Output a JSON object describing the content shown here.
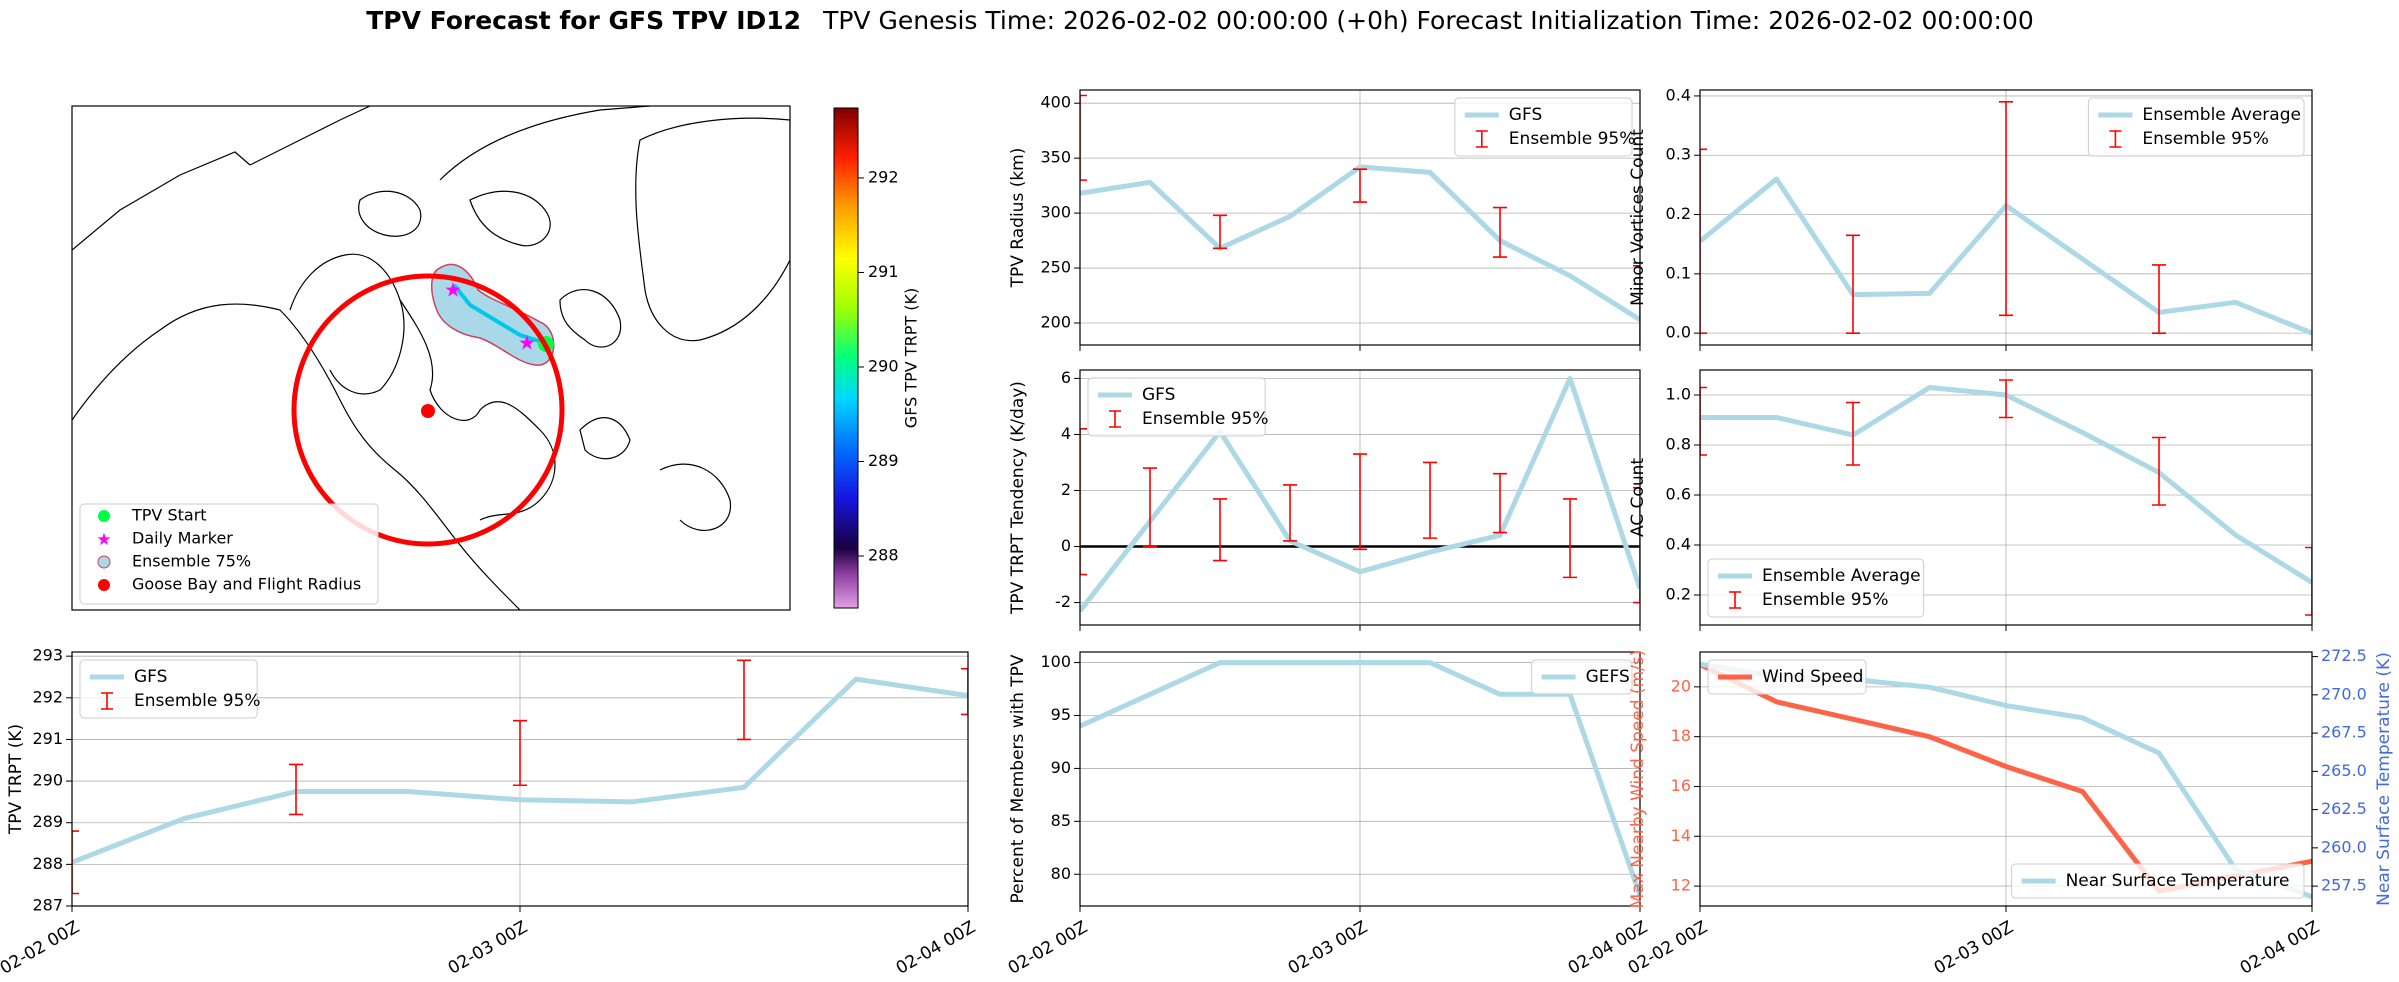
{
  "title": "TPV Forecast for GFS TPV ID12",
  "subtitle": "TPV Genesis Time: 2026-02-02 00:00:00 (+0h)   Forecast Initialization Time: 2026-02-02 00:00:00",
  "chart_data": [
    {
      "type": "map",
      "legend": [
        "TPV Start",
        "Daily Marker",
        "Ensemble 75%",
        "Goose Bay and Flight Radius"
      ],
      "colorbar": {
        "label": "GFS TPV TRPT (K)",
        "lim": [
          287.45,
          292.74
        ],
        "ticks": [
          288,
          289,
          290,
          291,
          292
        ]
      }
    },
    {
      "type": "line",
      "ylabel": "TPV Radius (km)",
      "grid": true,
      "legend": "upper right",
      "x": [
        0,
        6,
        12,
        18,
        24,
        30,
        36,
        42,
        48
      ],
      "xlim": [
        0,
        48
      ],
      "xticks": [
        0,
        24,
        48
      ],
      "ylim": [
        180,
        412
      ],
      "yticks": [
        200,
        250,
        300,
        350,
        400
      ],
      "series": [
        {
          "name": "GFS",
          "color": "#add8e6",
          "values": [
            318,
            328,
            268,
            297,
            342,
            337,
            275,
            243,
            203
          ]
        }
      ],
      "error_bars": {
        "name": "Ensemble 95%",
        "color": "red",
        "x": [
          0,
          12,
          24,
          36,
          48
        ],
        "low": [
          330,
          268,
          310,
          260,
          170
        ],
        "high": [
          407,
          298,
          340,
          305,
          252
        ]
      }
    },
    {
      "type": "line",
      "ylabel": "Minor Vortices Count",
      "grid": true,
      "legend": "upper right",
      "x": [
        0,
        6,
        12,
        18,
        24,
        30,
        36,
        42,
        48
      ],
      "xlim": [
        0,
        48
      ],
      "xticks": [
        0,
        24,
        48
      ],
      "ylim": [
        -0.02,
        0.41
      ],
      "yticks": [
        {
          "value": 0,
          "label": "0.0"
        },
        0.1,
        0.2,
        0.3,
        0.4
      ],
      "series": [
        {
          "name": "Ensemble Average",
          "color": "#add8e6",
          "values": [
            0.155,
            0.26,
            0.065,
            0.067,
            0.215,
            0.125,
            0.035,
            0.052,
            0.0
          ]
        }
      ],
      "error_bars": {
        "name": "Ensemble 95%",
        "color": "red",
        "x": [
          0,
          12,
          24,
          36
        ],
        "low": [
          0,
          0,
          0.03,
          0
        ],
        "high": [
          0.31,
          0.165,
          0.39,
          0.115
        ]
      }
    },
    {
      "type": "line",
      "ylabel": "TPV TRPT Tendency (K/day)",
      "grid": true,
      "legend": "upper left",
      "reference_line": 0,
      "x": [
        0,
        6,
        12,
        18,
        24,
        30,
        36,
        42,
        48
      ],
      "xlim": [
        0,
        48
      ],
      "xticks": [
        0,
        24,
        48
      ],
      "ylim": [
        -2.8,
        6.3
      ],
      "yticks": [
        -2,
        0,
        2,
        4,
        6
      ],
      "series": [
        {
          "name": "GFS",
          "color": "#add8e6",
          "values": [
            -2.3,
            0.9,
            4.1,
            0.2,
            -0.9,
            -0.2,
            0.4,
            6.0,
            -1.5
          ]
        }
      ],
      "error_bars": {
        "name": "Ensemble 95%",
        "color": "red",
        "x": [
          0,
          6,
          12,
          18,
          24,
          30,
          36,
          42,
          48
        ],
        "low": [
          -1.0,
          0,
          -0.5,
          0.2,
          -0.1,
          0.3,
          0.5,
          -1.1,
          -2.0
        ],
        "high": [
          4.2,
          2.8,
          1.7,
          2.2,
          3.3,
          3.0,
          2.6,
          1.7,
          2.1
        ]
      }
    },
    {
      "type": "line",
      "ylabel": "AC Count",
      "grid": true,
      "legend": "lower left",
      "x": [
        0,
        6,
        12,
        18,
        24,
        30,
        36,
        42,
        48
      ],
      "xlim": [
        0,
        48
      ],
      "xticks": [
        0,
        24,
        48
      ],
      "ylim": [
        0.08,
        1.1
      ],
      "yticks": [
        0.2,
        0.4,
        0.6,
        0.8,
        {
          "value": 1,
          "label": "1.0"
        }
      ],
      "series": [
        {
          "name": "Ensemble Average",
          "color": "#add8e6",
          "values": [
            0.91,
            0.91,
            0.84,
            1.03,
            1.0,
            0.85,
            0.69,
            0.44,
            0.25
          ]
        }
      ],
      "error_bars": {
        "name": "Ensemble 95%",
        "color": "red",
        "x": [
          0,
          12,
          24,
          36,
          48
        ],
        "low": [
          0.76,
          0.72,
          0.91,
          0.56,
          0.12
        ],
        "high": [
          1.03,
          0.97,
          1.06,
          0.83,
          0.39
        ]
      }
    },
    {
      "type": "line",
      "ylabel": "TPV TRPT (K)",
      "grid": true,
      "legend": "upper left",
      "x": [
        0,
        6,
        12,
        18,
        24,
        30,
        36,
        42,
        48
      ],
      "xlim": [
        0,
        48
      ],
      "xticks": [
        {
          "value": 0,
          "label": "02-02 00Z"
        },
        {
          "value": 24,
          "label": "02-03 00Z"
        },
        {
          "value": 48,
          "label": "02-04 00Z"
        }
      ],
      "ylim": [
        287,
        293.1
      ],
      "yticks": [
        287,
        288,
        289,
        290,
        291,
        292,
        293
      ],
      "series": [
        {
          "name": "GFS",
          "color": "#add8e6",
          "values": [
            288.05,
            289.1,
            289.75,
            289.75,
            289.55,
            289.5,
            289.85,
            292.45,
            292.05
          ]
        }
      ],
      "error_bars": {
        "name": "Ensemble 95%",
        "color": "red",
        "x": [
          0,
          12,
          24,
          36,
          48
        ],
        "low": [
          287.3,
          289.2,
          289.9,
          291.0,
          291.6
        ],
        "high": [
          288.8,
          290.4,
          291.45,
          292.9,
          292.7
        ]
      }
    },
    {
      "type": "line",
      "ylabel": "Percent of Members with TPV",
      "grid": true,
      "legend": "upper right",
      "x": [
        0,
        6,
        12,
        18,
        24,
        30,
        36,
        42,
        48
      ],
      "xlim": [
        0,
        48
      ],
      "xticks": [
        {
          "value": 0,
          "label": "02-02 00Z"
        },
        {
          "value": 24,
          "label": "02-03 00Z"
        },
        {
          "value": 48,
          "label": "02-04 00Z"
        }
      ],
      "ylim": [
        77,
        101
      ],
      "yticks": [
        80,
        85,
        90,
        95,
        100
      ],
      "series": [
        {
          "name": "GEFS",
          "color": "#add8e6",
          "values": [
            94,
            97,
            100,
            100,
            100,
            100,
            97,
            97,
            78
          ]
        }
      ]
    },
    {
      "type": "line",
      "ylabel": "Max Nearby Wind Speed (m/s)",
      "y2label": "Near Surface Temperature (K)",
      "grid": true,
      "x": [
        0,
        6,
        12,
        18,
        24,
        30,
        36,
        42,
        48
      ],
      "xlim": [
        0,
        48
      ],
      "xticks": [
        {
          "value": 0,
          "label": "02-02 00Z"
        },
        {
          "value": 24,
          "label": "02-03 00Z"
        },
        {
          "value": 48,
          "label": "02-04 00Z"
        }
      ],
      "ylim": [
        11.2,
        21.4
      ],
      "yticks": [
        12,
        14,
        16,
        18,
        20
      ],
      "y2lim": [
        256.2,
        272.8
      ],
      "y2ticks": [
        257.5,
        {
          "value": 260,
          "label": "260.0"
        },
        262.5,
        {
          "value": 265,
          "label": "265.0"
        },
        267.5,
        {
          "value": 270,
          "label": "270.0"
        },
        272.5
      ],
      "series": [
        {
          "name": "Wind Speed",
          "color": "tomato",
          "legend": "upper left",
          "values": [
            20.9,
            19.4,
            18.7,
            18.0,
            16.8,
            15.8,
            11.8,
            12.4,
            13.0
          ]
        },
        {
          "name": "Near Surface Temperature",
          "color": "#add8e6",
          "axis": "y2",
          "legend": "lower right",
          "values": [
            272.0,
            271.2,
            271.0,
            270.5,
            269.3,
            268.5,
            266.2,
            258.6,
            256.8
          ]
        }
      ],
      "axis_colors": [
        "tomato",
        "royalblue"
      ]
    }
  ]
}
